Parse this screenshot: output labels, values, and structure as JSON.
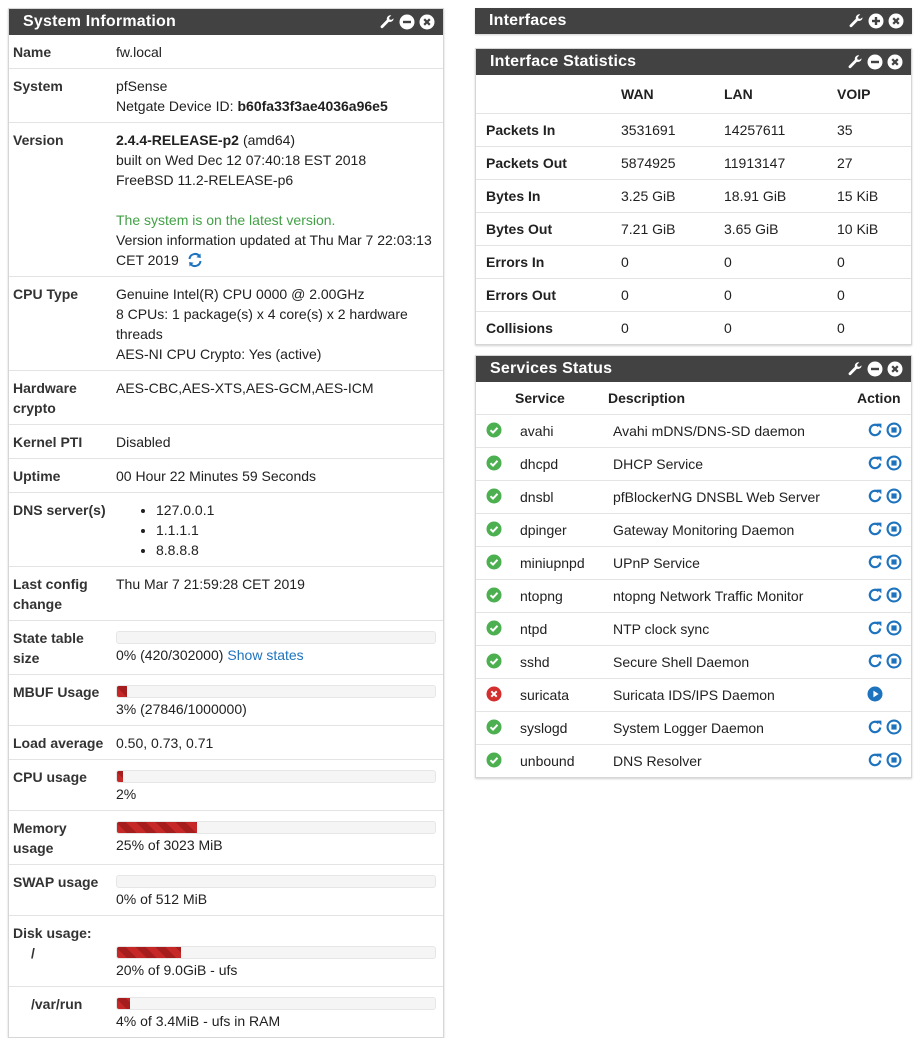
{
  "system_information": {
    "title": "System Information",
    "bar_range": [
      0,
      100
    ],
    "rows": [
      {
        "label": "Name",
        "lines": [
          "fw.local"
        ]
      },
      {
        "label": "System",
        "lines": [
          "pfSense",
          [
            {
              "text": "Netgate Device ID:"
            },
            {
              "text": "b60fa33f3ae4036a96e5",
              "style": "bold"
            }
          ]
        ]
      },
      {
        "label": "Version",
        "lines": [
          [
            {
              "text": "2.4.4-RELEASE-p2",
              "style": "bold"
            },
            {
              "text": "(amd64)"
            }
          ],
          "built on Wed Dec 12 07:40:18 EST 2018",
          "FreeBSD 11.2-RELEASE-p6",
          [
            {
              "text": "The system is on the latest version.",
              "style": "status"
            }
          ],
          "Version information updated at Thu Mar 7 22:03:13 CET 2019"
        ],
        "refresh_icon": true
      },
      {
        "label": "CPU Type",
        "lines": [
          "Genuine Intel(R) CPU 0000 @ 2.00GHz",
          "8 CPUs: 1 package(s) x 4 core(s) x 2 hardware threads",
          "AES-NI CPU Crypto: Yes (active)"
        ]
      },
      {
        "label": "Hardware crypto",
        "lines": [
          "AES-CBC,AES-XTS,AES-GCM,AES-ICM"
        ]
      },
      {
        "label": "Kernel PTI",
        "lines": [
          "Disabled"
        ]
      },
      {
        "label": "Uptime",
        "lines": [
          "00 Hour 22 Minutes 59 Seconds"
        ]
      },
      {
        "label": "DNS server(s)",
        "list": [
          "127.0.0.1",
          "1.1.1.1",
          "8.8.8.8"
        ]
      },
      {
        "label": "Last config change",
        "lines": [
          "Thu Mar 7 21:59:28 CET 2019"
        ]
      },
      {
        "label": "State table size",
        "bar": 0,
        "lines": [
          [
            {
              "text": "0% (420/302000)"
            },
            {
              "text": "Show states",
              "style": "link"
            }
          ]
        ]
      },
      {
        "label": "MBUF Usage",
        "bar": 3,
        "lines": [
          "3% (27846/1000000)"
        ]
      },
      {
        "label": "Load average",
        "lines": [
          "0.50, 0.73, 0.71"
        ]
      },
      {
        "label": "CPU usage",
        "bar": 2,
        "lines": [
          "2%"
        ]
      },
      {
        "label": "Memory usage",
        "bar": 25,
        "lines": [
          "25% of 3023 MiB"
        ]
      },
      {
        "label": "SWAP usage",
        "bar": 0,
        "lines": [
          "0% of 512 MiB"
        ]
      },
      {
        "label": "Disk usage:",
        "sublabel": "/",
        "bar": 20,
        "lines": [
          "20% of 9.0GiB - ufs"
        ]
      },
      {
        "label": "/var/run",
        "indent": true,
        "bar": 4,
        "lines": [
          "4% of 3.4MiB - ufs in RAM"
        ]
      }
    ]
  },
  "interfaces": {
    "title": "Interfaces",
    "collapsed": true
  },
  "interface_statistics": {
    "title": "Interface Statistics",
    "columns": [
      "WAN",
      "LAN",
      "VOIP"
    ],
    "rows": [
      {
        "label": "Packets In",
        "values": [
          3531691,
          14257611,
          35
        ]
      },
      {
        "label": "Packets Out",
        "values": [
          5874925,
          11913147,
          27
        ]
      },
      {
        "label": "Bytes In",
        "values": [
          "3.25 GiB",
          "18.91 GiB",
          "15 KiB"
        ]
      },
      {
        "label": "Bytes Out",
        "values": [
          "7.21 GiB",
          "3.65 GiB",
          "10 KiB"
        ]
      },
      {
        "label": "Errors In",
        "values": [
          0,
          0,
          0
        ]
      },
      {
        "label": "Errors Out",
        "values": [
          0,
          0,
          0
        ]
      },
      {
        "label": "Collisions",
        "values": [
          0,
          0,
          0
        ]
      }
    ]
  },
  "services_status": {
    "title": "Services Status",
    "columns": [
      "Service",
      "Description",
      "Action"
    ],
    "rows": [
      {
        "name": "avahi",
        "description": "Avahi mDNS/DNS-SD daemon",
        "running": true
      },
      {
        "name": "dhcpd",
        "description": "DHCP Service",
        "running": true
      },
      {
        "name": "dnsbl",
        "description": "pfBlockerNG DNSBL Web Server",
        "running": true
      },
      {
        "name": "dpinger",
        "description": "Gateway Monitoring Daemon",
        "running": true
      },
      {
        "name": "miniupnpd",
        "description": "UPnP Service",
        "running": true
      },
      {
        "name": "ntopng",
        "description": "ntopng Network Traffic Monitor",
        "running": true
      },
      {
        "name": "ntpd",
        "description": "NTP clock sync",
        "running": true
      },
      {
        "name": "sshd",
        "description": "Secure Shell Daemon",
        "running": true
      },
      {
        "name": "suricata",
        "description": "Suricata IDS/IPS Daemon",
        "running": false
      },
      {
        "name": "syslogd",
        "description": "System Logger Daemon",
        "running": true
      },
      {
        "name": "unbound",
        "description": "DNS Resolver",
        "running": true
      }
    ]
  }
}
